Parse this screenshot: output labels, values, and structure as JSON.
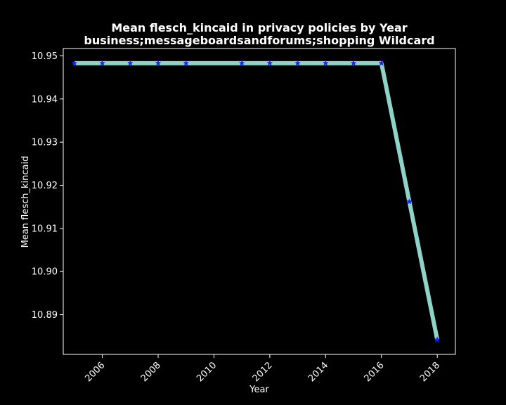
{
  "chart_data": {
    "type": "line",
    "title": "Mean flesch_kincaid in privacy policies by Year",
    "subtitle": "business;messageboardsandforums;shopping Wildcard",
    "xlabel": "Year",
    "ylabel": "Mean flesch_kincaid",
    "x": [
      2005,
      2006,
      2007,
      2008,
      2009,
      2011,
      2012,
      2013,
      2014,
      2015,
      2016,
      2017,
      2018
    ],
    "series": [
      {
        "values": [
          10.9483,
          10.9483,
          10.9483,
          10.9483,
          10.9483,
          10.9483,
          10.9483,
          10.9483,
          10.9483,
          10.9483,
          10.9483,
          10.9162,
          10.8842
        ]
      }
    ],
    "xlim": [
      2004.6,
      2018.65
    ],
    "ylim": [
      10.8808,
      10.9517
    ],
    "xticks": [
      2006,
      2008,
      2010,
      2012,
      2014,
      2016,
      2018
    ],
    "xtick_labels": [
      "2006",
      "2008",
      "2010",
      "2012",
      "2014",
      "2016",
      "2018"
    ],
    "yticks": [
      10.89,
      10.9,
      10.91,
      10.92,
      10.93,
      10.94,
      10.95
    ],
    "ytick_labels": [
      "10.89",
      "10.90",
      "10.91",
      "10.92",
      "10.93",
      "10.94",
      "10.95"
    ],
    "grid": false,
    "colors": {
      "background": "#000000",
      "line": "#8dd3c7",
      "marker": "#1f1fff",
      "axes": "#ffffff",
      "text": "#ffffff"
    }
  }
}
